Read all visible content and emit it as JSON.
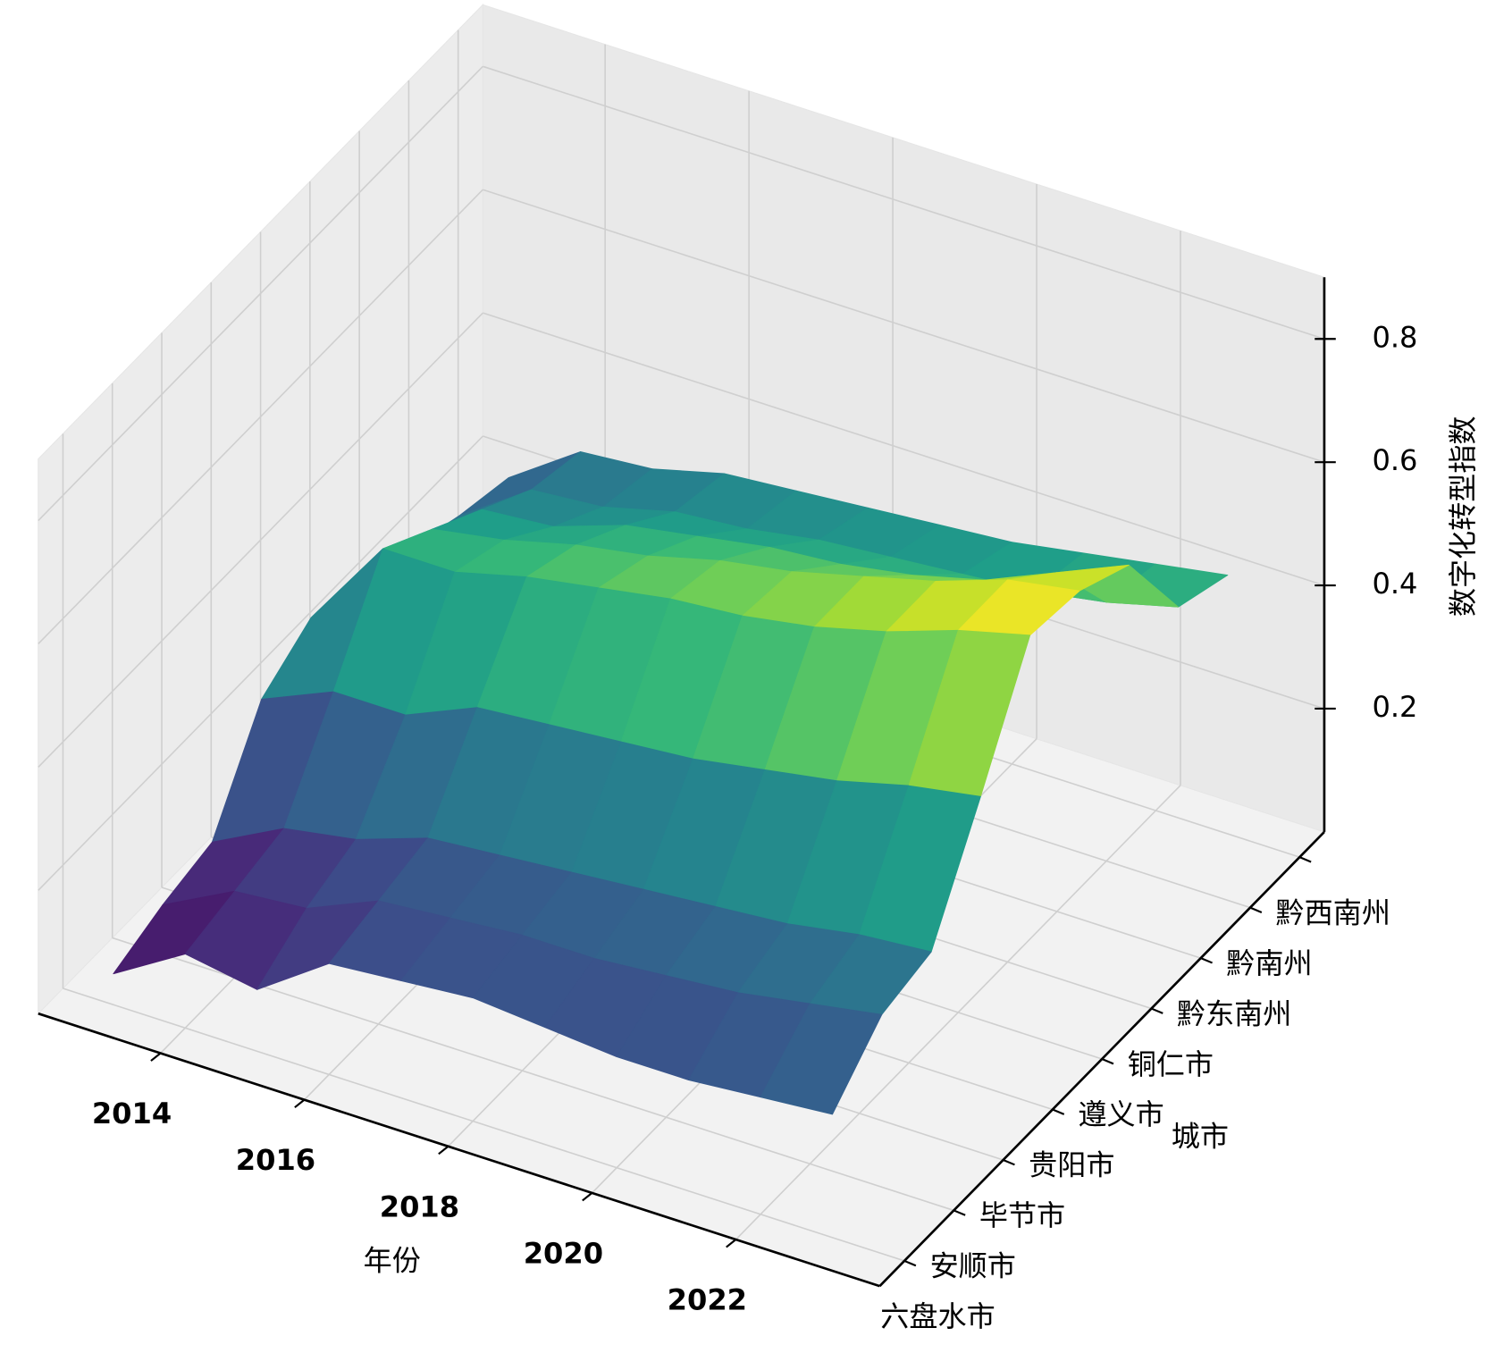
{
  "chart_data": {
    "type": "surface3d",
    "xlabel": "年份",
    "ylabel": "城市",
    "zlabel": "数字化转型指数",
    "x": [
      2013,
      2014,
      2015,
      2016,
      2017,
      2018,
      2019,
      2020,
      2021,
      2022,
      2023
    ],
    "y_categories": [
      "六盘水市",
      "安顺市",
      "毕节市",
      "贵阳市",
      "遵义市",
      "铜仁市",
      "黔东南州",
      "黔南州",
      "黔西南州"
    ],
    "z": [
      [
        0.05,
        0.12,
        0.1,
        0.18,
        0.19,
        0.2,
        0.19,
        0.18,
        0.18,
        0.19,
        0.2
      ],
      [
        0.08,
        0.14,
        0.15,
        0.2,
        0.21,
        0.22,
        0.22,
        0.23,
        0.24,
        0.26,
        0.28
      ],
      [
        0.1,
        0.16,
        0.18,
        0.22,
        0.23,
        0.24,
        0.25,
        0.26,
        0.27,
        0.29,
        0.3
      ],
      [
        0.25,
        0.3,
        0.3,
        0.35,
        0.36,
        0.37,
        0.38,
        0.4,
        0.42,
        0.45,
        0.47
      ],
      [
        0.3,
        0.45,
        0.45,
        0.48,
        0.5,
        0.52,
        0.53,
        0.55,
        0.58,
        0.62,
        0.65
      ],
      [
        0.28,
        0.4,
        0.42,
        0.45,
        0.47,
        0.5,
        0.52,
        0.55,
        0.58,
        0.62,
        0.64
      ],
      [
        0.25,
        0.35,
        0.36,
        0.4,
        0.42,
        0.44,
        0.45,
        0.47,
        0.5,
        0.55,
        0.6
      ],
      [
        0.22,
        0.3,
        0.31,
        0.34,
        0.35,
        0.37,
        0.38,
        0.39,
        0.4,
        0.42,
        0.45
      ],
      [
        0.2,
        0.28,
        0.29,
        0.32,
        0.33,
        0.34,
        0.35,
        0.36,
        0.38,
        0.4,
        0.42
      ]
    ],
    "xlim": [
      2012.3,
      2024.0
    ],
    "xticks": [
      2014,
      2016,
      2018,
      2020,
      2022
    ],
    "ylim": [
      -0.5,
      8.5
    ],
    "zlim": [
      0,
      0.9
    ],
    "zticks": [
      0.2,
      0.4,
      0.6,
      0.8
    ],
    "colormap": "viridis",
    "grid": true
  }
}
